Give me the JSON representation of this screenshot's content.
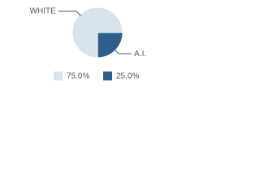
{
  "chart_data": {
    "type": "pie",
    "categories": [
      "WHITE",
      "A.I."
    ],
    "values": [
      75,
      25
    ],
    "value_labels": [
      "75.0%",
      "25.0%"
    ],
    "colors": [
      "#d9e3ec",
      "#2e5f8a"
    ]
  }
}
